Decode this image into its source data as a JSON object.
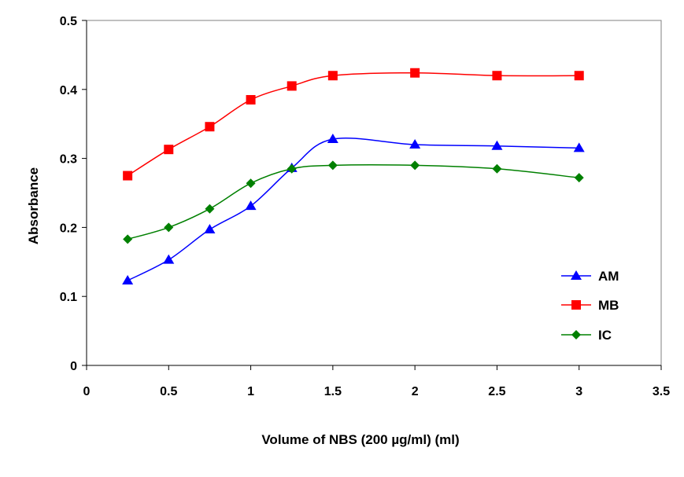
{
  "chart_data": {
    "type": "line",
    "title": "",
    "xlabel": "Volume of NBS (200 µg/ml) (ml)",
    "ylabel": "Absorbance",
    "xlim": [
      0,
      3.5
    ],
    "ylim": [
      0,
      0.5
    ],
    "xticks": [
      "0",
      "0.5",
      "1",
      "1.5",
      "2",
      "2.5",
      "3",
      "3.5"
    ],
    "yticks": [
      "0",
      "0.1",
      "0.2",
      "0.3",
      "0.4",
      "0.5"
    ],
    "grid": false,
    "legend_position": "right",
    "x": [
      0.25,
      0.5,
      0.75,
      1.0,
      1.25,
      1.5,
      2.0,
      2.5,
      3.0
    ],
    "series": [
      {
        "name": "AM",
        "color": "#0000FF",
        "marker": "triangle",
        "values": [
          0.123,
          0.153,
          0.197,
          0.231,
          0.286,
          0.328,
          0.32,
          0.318,
          0.315
        ]
      },
      {
        "name": "MB",
        "color": "#FF0000",
        "marker": "square",
        "values": [
          0.275,
          0.313,
          0.346,
          0.385,
          0.405,
          0.42,
          0.424,
          0.42,
          0.42
        ]
      },
      {
        "name": "IC",
        "color": "#008000",
        "marker": "diamond",
        "values": [
          0.183,
          0.2,
          0.227,
          0.264,
          0.285,
          0.29,
          0.29,
          0.285,
          0.272
        ]
      }
    ]
  }
}
